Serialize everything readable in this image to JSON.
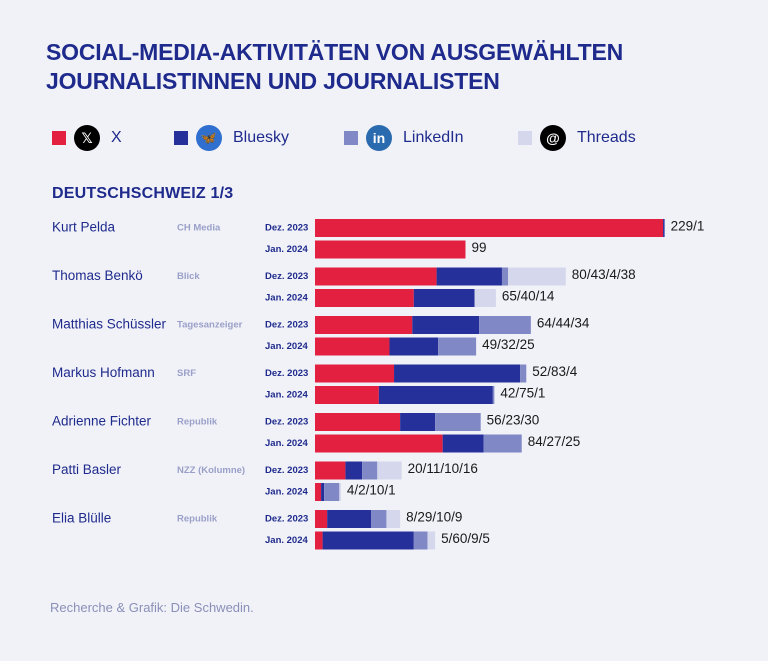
{
  "title": "SOCIAL-MEDIA-AKTIVITÄTEN VON AUSGEWÄHLTEN JOURNALISTINNEN UND JOURNALISTEN",
  "section_title": "DEUTSCHSCHWEIZ  1/3",
  "source": "Recherche & Grafik: Die Schwedin.",
  "colors": {
    "x": "#e32040",
    "bluesky": "#25309a",
    "linkedin": "#8088c6",
    "threads": "#d5d8ec",
    "text": "#1e2a8c",
    "muted": "#9aa0c8"
  },
  "legend": [
    {
      "key": "x",
      "label": "X",
      "icon": "x-logo-icon",
      "glyph": "𝕏"
    },
    {
      "key": "bluesky",
      "label": "Bluesky",
      "icon": "bluesky-butterfly-icon",
      "glyph": "🦋"
    },
    {
      "key": "linkedin",
      "label": "LinkedIn",
      "icon": "linkedin-icon",
      "glyph": "in"
    },
    {
      "key": "threads",
      "label": "Threads",
      "icon": "threads-icon",
      "glyph": "@"
    }
  ],
  "chart_data": {
    "type": "bar",
    "orientation": "horizontal",
    "stacked": true,
    "series_names": [
      "X",
      "Bluesky",
      "LinkedIn",
      "Threads"
    ],
    "rows": [
      {
        "person": "Kurt Pelda",
        "outlet": "CH Media",
        "entries": [
          {
            "period": "Dez. 2023",
            "values": [
              229,
              1,
              0,
              0
            ],
            "label": "229/1"
          },
          {
            "period": "Jan. 2024",
            "values": [
              99,
              0,
              0,
              0
            ],
            "label": "99"
          }
        ]
      },
      {
        "person": "Thomas Benkö",
        "outlet": "Blick",
        "entries": [
          {
            "period": "Dez. 2023",
            "values": [
              80,
              43,
              4,
              38
            ],
            "label": "80/43/4/38"
          },
          {
            "period": "Jan. 2024",
            "values": [
              65,
              40,
              0,
              14
            ],
            "label": "65/40/14"
          }
        ]
      },
      {
        "person": "Matthias Schüssler",
        "outlet": "Tagesanzeiger",
        "entries": [
          {
            "period": "Dez. 2023",
            "values": [
              64,
              44,
              34,
              0
            ],
            "label": "64/44/34"
          },
          {
            "period": "Jan. 2024",
            "values": [
              49,
              32,
              25,
              0
            ],
            "label": "49/32/25"
          }
        ]
      },
      {
        "person": "Markus Hofmann",
        "outlet": "SRF",
        "entries": [
          {
            "period": "Dez. 2023",
            "values": [
              52,
              83,
              4,
              0
            ],
            "label": "52/83/4"
          },
          {
            "period": "Jan. 2024",
            "values": [
              42,
              75,
              1,
              0
            ],
            "label": "42/75/1"
          }
        ]
      },
      {
        "person": "Adrienne Fichter",
        "outlet": "Republik",
        "entries": [
          {
            "period": "Dez. 2023",
            "values": [
              56,
              23,
              30,
              0
            ],
            "label": "56/23/30"
          },
          {
            "period": "Jan. 2024",
            "values": [
              84,
              27,
              25,
              0
            ],
            "label": "84/27/25"
          }
        ]
      },
      {
        "person": "Patti Basler",
        "outlet": "NZZ (Kolumne)",
        "entries": [
          {
            "period": "Dez. 2023",
            "values": [
              20,
              11,
              10,
              16
            ],
            "label": "20/11/10/16"
          },
          {
            "period": "Jan. 2024",
            "values": [
              4,
              2,
              10,
              1
            ],
            "label": "4/2/10/1"
          }
        ]
      },
      {
        "person": "Elia Blülle",
        "outlet": "Republik",
        "entries": [
          {
            "period": "Dez. 2023",
            "values": [
              8,
              29,
              10,
              9
            ],
            "label": "8/29/10/9"
          },
          {
            "period": "Jan. 2024",
            "values": [
              5,
              60,
              9,
              5
            ],
            "label": "5/60/9/5"
          }
        ]
      }
    ]
  }
}
